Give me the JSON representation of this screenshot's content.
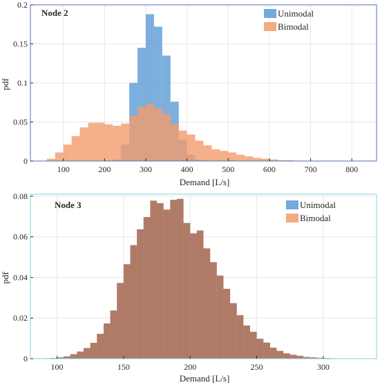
{
  "chart_data": [
    {
      "type": "bar",
      "title": "Node 2",
      "xlabel": "Demand [L/s]",
      "ylabel": "pdf",
      "xlim": [
        20,
        860
      ],
      "ylim": [
        0,
        0.2
      ],
      "xticks": [
        100,
        200,
        300,
        400,
        500,
        600,
        700,
        800
      ],
      "yticks": [
        0,
        0.05,
        0.1,
        0.15,
        0.2
      ],
      "grid": true,
      "legend_position": "top-right",
      "bin_width": 20,
      "bin_start": 60,
      "series": [
        {
          "name": "Unimodal",
          "color": "#5b9bd5",
          "values": [
            0,
            0,
            0,
            0,
            0,
            0,
            0,
            0,
            0.002,
            0.021,
            0.1,
            0.145,
            0.188,
            0.172,
            0.135,
            0.076,
            0.027,
            0.008,
            0.002,
            0.001,
            0,
            0,
            0,
            0,
            0,
            0,
            0,
            0,
            0,
            0,
            0,
            0,
            0,
            0,
            0,
            0,
            0,
            0,
            0,
            0
          ]
        },
        {
          "name": "Bimodal",
          "color": "#f29b6c",
          "values": [
            0.003,
            0.011,
            0.021,
            0.032,
            0.043,
            0.049,
            0.049,
            0.047,
            0.045,
            0.048,
            0.058,
            0.069,
            0.073,
            0.068,
            0.06,
            0.048,
            0.039,
            0.034,
            0.026,
            0.02,
            0.015,
            0.013,
            0.011,
            0.008,
            0.006,
            0.004,
            0.003,
            0.002,
            0.001,
            0.001,
            0.0005,
            0.0003,
            0.0002,
            0.0001,
            0,
            0,
            0,
            0,
            0,
            0
          ]
        }
      ]
    },
    {
      "type": "bar",
      "title": "Node 3",
      "xlabel": "Demand [L/s]",
      "ylabel": "pdf",
      "xlim": [
        80,
        340
      ],
      "ylim": [
        0,
        0.081
      ],
      "xticks": [
        100,
        150,
        200,
        250,
        300
      ],
      "yticks": [
        0,
        0.02,
        0.04,
        0.06,
        0.08
      ],
      "grid": true,
      "legend_position": "top-right",
      "bin_width": 5,
      "bin_start": 90,
      "overlap_color": "#b07b66",
      "series": [
        {
          "name": "Unimodal",
          "color": "#5b9bd5",
          "values": [
            0.0002,
            0.0003,
            0.0006,
            0.0011,
            0.0022,
            0.0035,
            0.0052,
            0.0078,
            0.0122,
            0.0173,
            0.0237,
            0.0373,
            0.0465,
            0.0559,
            0.0637,
            0.0697,
            0.0778,
            0.0766,
            0.0734,
            0.0782,
            0.0787,
            0.0668,
            0.0617,
            0.0631,
            0.0543,
            0.0475,
            0.0409,
            0.0344,
            0.0273,
            0.0214,
            0.0163,
            0.0132,
            0.0098,
            0.0079,
            0.0054,
            0.0038,
            0.0026,
            0.0019,
            0.0014,
            0.0008,
            0.0006,
            0.0004,
            0.0003,
            0.0002,
            0.0001,
            0.0001,
            0.0001,
            0.0001,
            0.0001,
            0.0001
          ]
        },
        {
          "name": "Bimodal",
          "color": "#f29b6c",
          "values": [
            0.0002,
            0.0003,
            0.0006,
            0.0011,
            0.0022,
            0.0035,
            0.0052,
            0.0078,
            0.0122,
            0.0173,
            0.0237,
            0.0373,
            0.0465,
            0.0559,
            0.0637,
            0.0697,
            0.0778,
            0.0766,
            0.0734,
            0.0782,
            0.0787,
            0.0668,
            0.0617,
            0.0631,
            0.0543,
            0.0475,
            0.0409,
            0.0344,
            0.0273,
            0.0214,
            0.0163,
            0.0132,
            0.0098,
            0.0079,
            0.0054,
            0.0038,
            0.0026,
            0.0019,
            0.0014,
            0.0008,
            0.0006,
            0.0004,
            0.0003,
            0.0002,
            0.0001,
            0.0001,
            0.0001,
            0.0001,
            0.0001,
            0.0001
          ]
        }
      ]
    }
  ]
}
